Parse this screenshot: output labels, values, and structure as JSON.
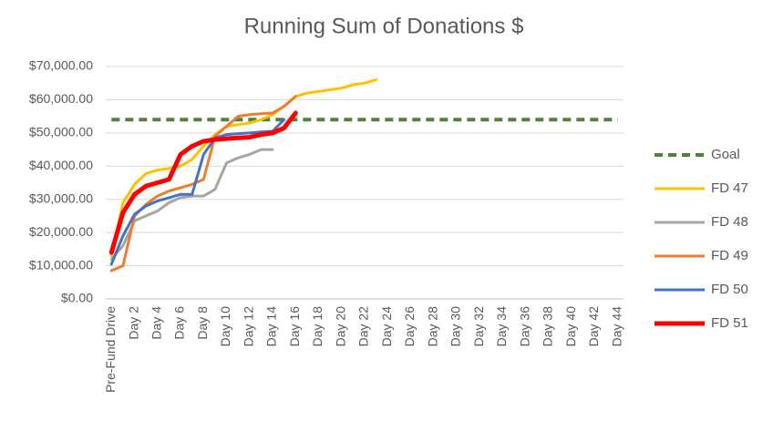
{
  "chart_data": {
    "type": "line",
    "title": "Running Sum of Donations $",
    "categories": [
      "Pre-Fund Drive",
      null,
      "Day 2",
      null,
      "Day 4",
      null,
      "Day 6",
      null,
      "Day 8",
      null,
      "Day 10",
      null,
      "Day 12",
      null,
      "Day 14",
      null,
      "Day 16",
      null,
      "Day 18",
      null,
      "Day 20",
      null,
      "Day 22",
      null,
      "Day 24",
      null,
      "Day 26",
      null,
      "Day 28",
      null,
      "Day 30",
      null,
      "Day 32",
      null,
      "Day 34",
      null,
      "Day 36",
      null,
      "Day 38",
      null,
      "Day 40",
      null,
      "Day 42",
      null,
      "Day 44"
    ],
    "ylim": [
      0,
      70000
    ],
    "yticks": [
      {
        "value": 0,
        "label": "$0.00"
      },
      {
        "value": 10000,
        "label": "$10,000.00"
      },
      {
        "value": 20000,
        "label": "$20,000.00"
      },
      {
        "value": 30000,
        "label": "$30,000.00"
      },
      {
        "value": 40000,
        "label": "$40,000.00"
      },
      {
        "value": 50000,
        "label": "$50,000.00"
      },
      {
        "value": 60000,
        "label": "$60,000.00"
      },
      {
        "value": 70000,
        "label": "$70,000.00"
      }
    ],
    "grid": true,
    "legend": "right",
    "series": [
      {
        "name": "Goal",
        "color": "#548235",
        "dashed": true,
        "line_width": 4,
        "values": [
          54000,
          54000,
          54000,
          54000,
          54000,
          54000,
          54000,
          54000,
          54000,
          54000,
          54000,
          54000,
          54000,
          54000,
          54000,
          54000,
          54000,
          54000,
          54000,
          54000,
          54000,
          54000,
          54000,
          54000,
          54000,
          54000,
          54000,
          54000,
          54000,
          54000,
          54000,
          54000,
          54000,
          54000,
          54000,
          54000,
          54000,
          54000,
          54000,
          54000,
          54000,
          54000,
          54000,
          54000,
          54000
        ]
      },
      {
        "name": "FD 47",
        "color": "#ffc000",
        "line_width": 3,
        "values": [
          13000,
          29000,
          34500,
          37800,
          38800,
          39300,
          40000,
          42000,
          46000,
          49500,
          52000,
          52500,
          53000,
          54000,
          55500,
          58000,
          61000,
          62000,
          62500,
          63000,
          63500,
          64500,
          65000,
          66000,
          null,
          null,
          null,
          null,
          null,
          null,
          null,
          null,
          null,
          null,
          null,
          null,
          null,
          null,
          null,
          null,
          null,
          null,
          null,
          null,
          null
        ]
      },
      {
        "name": "FD 48",
        "color": "#a5a5a5",
        "line_width": 3,
        "values": [
          12000,
          16000,
          23500,
          25000,
          26500,
          29000,
          30500,
          31000,
          31000,
          33000,
          41000,
          42500,
          43500,
          45000,
          45000,
          null,
          null,
          null,
          null,
          null,
          null,
          null,
          null,
          null,
          null,
          null,
          null,
          null,
          null,
          null,
          null,
          null,
          null,
          null,
          null,
          null,
          null,
          null,
          null,
          null,
          null,
          null,
          null,
          null,
          null
        ]
      },
      {
        "name": "FD 49",
        "color": "#ed7d31",
        "line_width": 3,
        "values": [
          8500,
          10000,
          25000,
          28500,
          31000,
          32500,
          33500,
          34500,
          36000,
          49000,
          52000,
          55000,
          55500,
          55800,
          56000,
          58000,
          61000,
          null,
          null,
          null,
          null,
          null,
          null,
          null,
          null,
          null,
          null,
          null,
          null,
          null,
          null,
          null,
          null,
          null,
          null,
          null,
          null,
          null,
          null,
          null,
          null,
          null,
          null,
          null,
          null
        ]
      },
      {
        "name": "FD 50",
        "color": "#4472c4",
        "line_width": 3,
        "values": [
          10500,
          19000,
          25500,
          28000,
          29500,
          30500,
          31500,
          31500,
          43500,
          48500,
          49500,
          49800,
          50000,
          50300,
          50500,
          54000,
          null,
          null,
          null,
          null,
          null,
          null,
          null,
          null,
          null,
          null,
          null,
          null,
          null,
          null,
          null,
          null,
          null,
          null,
          null,
          null,
          null,
          null,
          null,
          null,
          null,
          null,
          null,
          null,
          null
        ]
      },
      {
        "name": "FD 51",
        "color": "#ff0000",
        "line_width": 5,
        "values": [
          14000,
          26000,
          31500,
          34000,
          35000,
          36000,
          43500,
          46000,
          47500,
          48000,
          48300,
          48500,
          48700,
          49500,
          50000,
          51500,
          56000,
          null,
          null,
          null,
          null,
          null,
          null,
          null,
          null,
          null,
          null,
          null,
          null,
          null,
          null,
          null,
          null,
          null,
          null,
          null,
          null,
          null,
          null,
          null,
          null,
          null,
          null,
          null,
          null
        ]
      }
    ]
  }
}
